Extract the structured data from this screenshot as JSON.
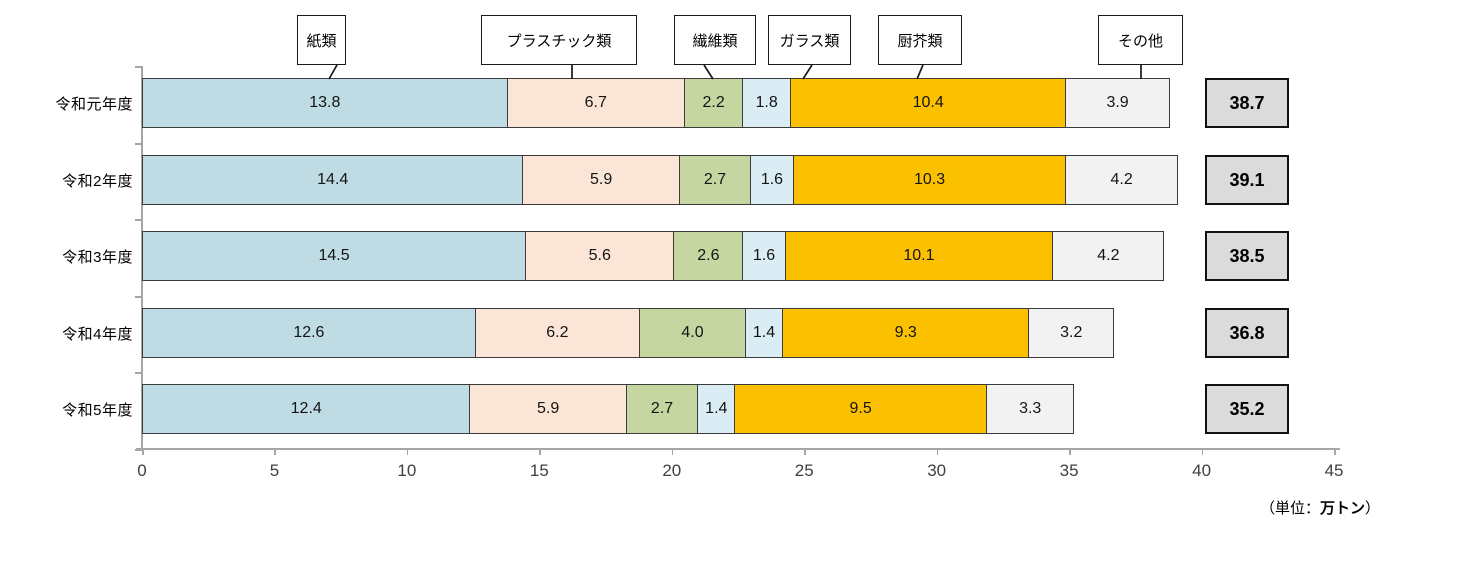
{
  "chart_data": {
    "type": "bar",
    "orientation": "horizontal",
    "stacked": true,
    "grid": false,
    "legend_position": "top-callout-boxes",
    "categories": [
      "令和元年度",
      "令和2年度",
      "令和3年度",
      "令和4年度",
      "令和5年度"
    ],
    "series": [
      {
        "name": "紙類",
        "color": "#bfdce5",
        "values": [
          13.8,
          14.4,
          14.5,
          12.6,
          12.4
        ]
      },
      {
        "name": "プラスチック類",
        "color": "#fbe5d6",
        "values": [
          6.7,
          5.9,
          5.6,
          6.2,
          5.9
        ]
      },
      {
        "name": "繊維類",
        "color": "#c6d6a1",
        "values": [
          2.2,
          2.7,
          2.6,
          4.0,
          2.7
        ]
      },
      {
        "name": "ガラス類",
        "color": "#dbedf4",
        "values": [
          1.8,
          1.6,
          1.6,
          1.4,
          1.4
        ]
      },
      {
        "name": "厨芥類",
        "color": "#fbc101",
        "values": [
          10.4,
          10.3,
          10.1,
          9.3,
          9.5
        ]
      },
      {
        "name": "その他",
        "color": "#f2f2f2",
        "values": [
          3.9,
          4.2,
          4.2,
          3.2,
          3.3
        ]
      }
    ],
    "totals": [
      38.7,
      39.1,
      38.5,
      36.8,
      35.2
    ],
    "xlabel": "",
    "ylabel": "",
    "xlim": [
      0,
      45
    ],
    "x_ticks": [
      0,
      5,
      10,
      15,
      20,
      25,
      30,
      35,
      40,
      45
    ],
    "unit_label": {
      "prefix": "（単位：",
      "bold": "万トン",
      "suffix": "）"
    },
    "colors": {
      "total_box_fill": "#dbdbdb",
      "total_box_border": "#111111",
      "axis": "#a6a6a6",
      "segment_border": "#3b3b3b",
      "callout_border": "#1a1a1a"
    }
  }
}
